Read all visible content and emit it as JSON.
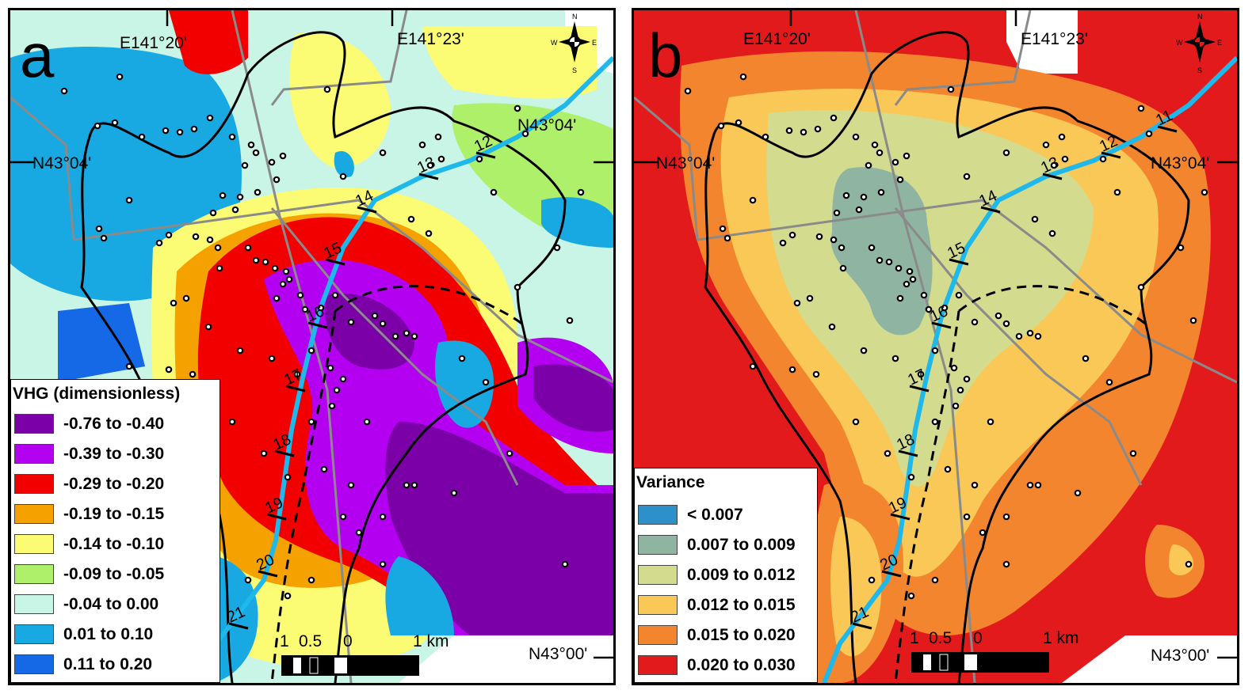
{
  "panels": [
    {
      "letter": "a",
      "lon_labels": [
        "E141°20'",
        "E141°23'"
      ],
      "lat_labels": [
        "N43°04'",
        "N43°04'",
        "N43°00'"
      ],
      "compass": {
        "n": "N",
        "s": "S",
        "e": "E",
        "w": "W"
      },
      "scale": {
        "ticks": [
          "1",
          "0.5",
          "0"
        ],
        "end": "1 km"
      },
      "stations": [
        "12",
        "13",
        "14",
        "15",
        "16",
        "17",
        "18",
        "19",
        "20",
        "21"
      ],
      "legend": {
        "title": "VHG (dimensionless)",
        "classes": [
          {
            "label": "-0.76 to -0.40",
            "color": "#7B00A7"
          },
          {
            "label": "-0.39 to -0.30",
            "color": "#B300F0"
          },
          {
            "label": "-0.29 to -0.20",
            "color": "#F20000"
          },
          {
            "label": "-0.19 to -0.15",
            "color": "#F5A200"
          },
          {
            "label": "-0.14 to -0.10",
            "color": "#FBFB74"
          },
          {
            "label": "-0.09 to -0.05",
            "color": "#AEF06A"
          },
          {
            "label": "-0.04 to 0.00",
            "color": "#C8F5E6"
          },
          {
            "label": "0.01 to 0.10",
            "color": "#18A8E2"
          },
          {
            "label": "0.11 to 0.20",
            "color": "#1568E6"
          }
        ]
      }
    },
    {
      "letter": "b",
      "lon_labels": [
        "E141°20'",
        "E141°23'"
      ],
      "lat_labels": [
        "N43°04'",
        "N43°04'",
        "N43°00'"
      ],
      "compass": {
        "n": "N",
        "s": "S",
        "e": "E",
        "w": "W"
      },
      "scale": {
        "ticks": [
          "1",
          "0.5",
          "0"
        ],
        "end": "1 km"
      },
      "stations": [
        "11",
        "12",
        "13",
        "14",
        "15",
        "16",
        "17",
        "18",
        "19",
        "20",
        "21"
      ],
      "legend": {
        "title": "Variance",
        "classes": [
          {
            "label": "<  0.007",
            "color": "#2E90C8"
          },
          {
            "label": "0.007 to 0.009",
            "color": "#8FB5A2"
          },
          {
            "label": "0.009 to 0.012",
            "color": "#D3DC8E"
          },
          {
            "label": "0.012 to 0.015",
            "color": "#F9C856"
          },
          {
            "label": "0.015 to 0.020",
            "color": "#F4852F"
          },
          {
            "label": "0.020 to 0.030",
            "color": "#E31A1C"
          }
        ]
      }
    }
  ]
}
